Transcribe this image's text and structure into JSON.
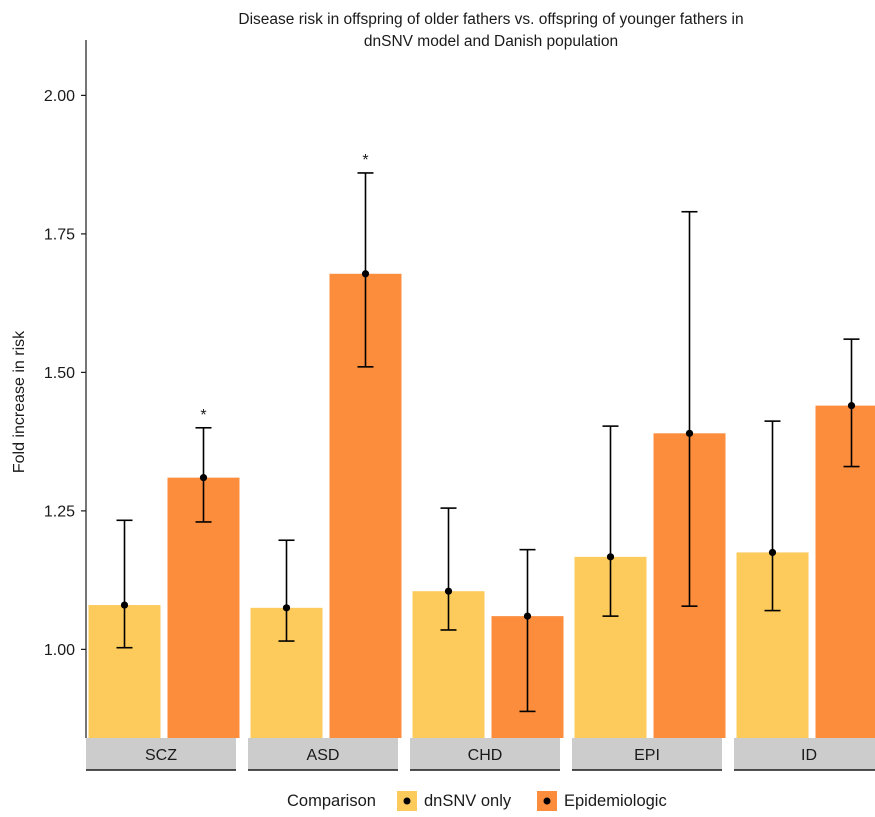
{
  "chart_data": {
    "type": "bar",
    "title": "Disease risk in offspring of older fathers vs. offspring of younger fathers in dnSNV model and Danish population",
    "title_lines": [
      "Disease risk in offspring of older fathers vs. offspring of younger fathers in",
      "dnSNV model and Danish population"
    ],
    "xlabel": "",
    "ylabel": "Fold increase in risk",
    "ylim": [
      0.84,
      2.1
    ],
    "yticks": [
      1.0,
      1.25,
      1.5,
      1.75,
      2.0
    ],
    "ytick_labels": [
      "1.00",
      "1.25",
      "1.50",
      "1.75",
      "2.00"
    ],
    "grid": false,
    "legend_position": "bottom",
    "legend_title": "Comparison",
    "categories": [
      "SCZ",
      "ASD",
      "CHD",
      "EPI",
      "ID"
    ],
    "series": [
      {
        "name": "dnSNV only",
        "color": "#FDCB5C",
        "values": [
          1.08,
          1.075,
          1.105,
          1.167,
          1.175
        ],
        "lower": [
          1.003,
          1.015,
          1.035,
          1.06,
          1.07
        ],
        "upper": [
          1.233,
          1.197,
          1.255,
          1.403,
          1.412
        ]
      },
      {
        "name": "Epidemiologic",
        "color": "#FC8D3D",
        "values": [
          1.31,
          1.678,
          1.06,
          1.39,
          1.44
        ],
        "lower": [
          1.23,
          1.51,
          0.888,
          1.078,
          1.33
        ],
        "upper": [
          1.4,
          1.86,
          1.18,
          1.79,
          1.56
        ]
      }
    ],
    "annotations": [
      {
        "category": "SCZ",
        "series": "Epidemiologic",
        "text": "*"
      },
      {
        "category": "ASD",
        "series": "Epidemiologic",
        "text": "*"
      }
    ],
    "strip_color": "#cccccc"
  }
}
